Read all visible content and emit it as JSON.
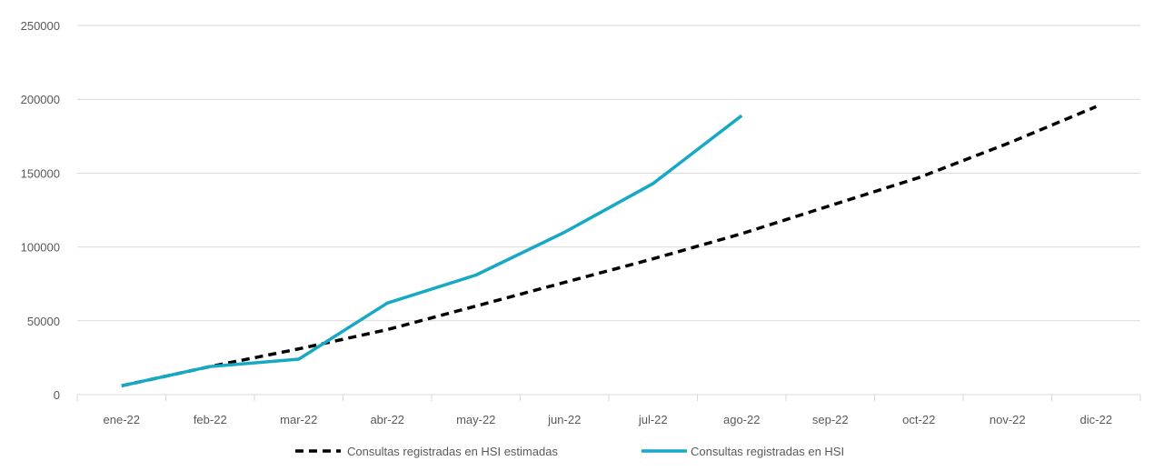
{
  "chart_data": {
    "type": "line",
    "title": "",
    "xlabel": "",
    "ylabel": "",
    "categories": [
      "ene-22",
      "feb-22",
      "mar-22",
      "abr-22",
      "may-22",
      "jun-22",
      "jul-22",
      "ago-22",
      "sep-22",
      "oct-22",
      "nov-22",
      "dic-22"
    ],
    "ylim": [
      0,
      250000
    ],
    "yticks": [
      "0",
      "50000",
      "100000",
      "150000",
      "200000",
      "250000"
    ],
    "grid": true,
    "legend_position": "bottom",
    "series": [
      {
        "name": "Consultas registradas en HSI estimadas",
        "style": "dashed",
        "color": "#000000",
        "values": [
          6000,
          19000,
          31000,
          44000,
          60000,
          76000,
          92000,
          109000,
          128000,
          147000,
          170000,
          195000
        ]
      },
      {
        "name": "Consultas registradas en HSI",
        "style": "solid",
        "color": "#17A9C3",
        "values": [
          6000,
          19000,
          24000,
          62000,
          81000,
          110000,
          143000,
          189000,
          null,
          null,
          null,
          null
        ]
      }
    ]
  }
}
